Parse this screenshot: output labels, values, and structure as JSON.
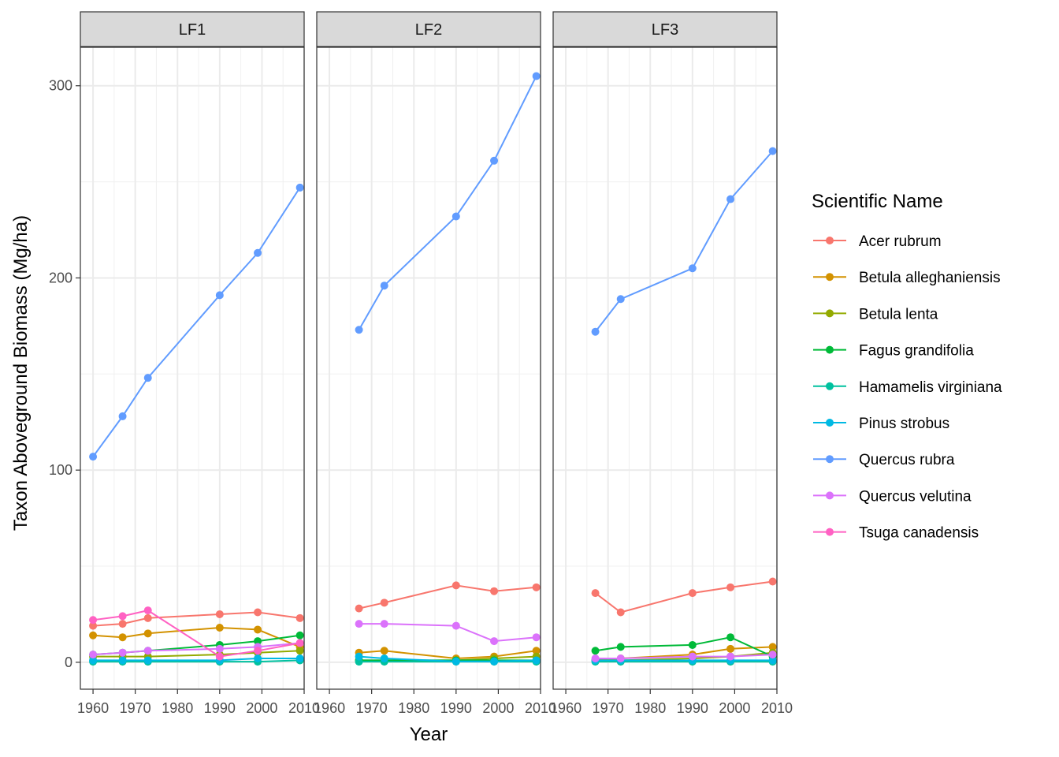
{
  "chart_data": {
    "type": "line",
    "facets": [
      "LF1",
      "LF2",
      "LF3"
    ],
    "xlabel": "Year",
    "ylabel": "Taxon Aboveground Biomass (Mg/ha)",
    "xlim": [
      1957,
      2010
    ],
    "ylim": [
      -14,
      320
    ],
    "x_ticks": [
      1960,
      1970,
      1980,
      1990,
      2000,
      2010
    ],
    "y_ticks": [
      0,
      100,
      200,
      300
    ],
    "grid": true,
    "legend": {
      "title": "Scientific Name",
      "placement": "right",
      "entries": [
        "Acer rubrum",
        "Betula alleghaniensis",
        "Betula lenta",
        "Fagus grandifolia",
        "Hamamelis virginiana",
        "Pinus strobus",
        "Quercus rubra",
        "Quercus velutina",
        "Tsuga canadensis"
      ]
    },
    "colors": {
      "Acer rubrum": "#F8766D",
      "Betula alleghaniensis": "#D39200",
      "Betula lenta": "#93AA00",
      "Fagus grandifolia": "#00BA38",
      "Hamamelis virginiana": "#00C19F",
      "Pinus strobus": "#00B9E3",
      "Quercus rubra": "#619CFF",
      "Quercus velutina": "#DB72FB",
      "Tsuga canadensis": "#FF61C3"
    },
    "series": [
      {
        "facet": "LF1",
        "name": "Acer rubrum",
        "x": [
          1960,
          1967,
          1973,
          1990,
          1999,
          2009
        ],
        "y": [
          19,
          20,
          23,
          25,
          26,
          23
        ]
      },
      {
        "facet": "LF1",
        "name": "Betula alleghaniensis",
        "x": [
          1960,
          1967,
          1973,
          1990,
          1999,
          2009
        ],
        "y": [
          14,
          13,
          15,
          18,
          17,
          8
        ]
      },
      {
        "facet": "LF1",
        "name": "Betula lenta",
        "x": [
          1960,
          1967,
          1973,
          1990,
          1999,
          2009
        ],
        "y": [
          3,
          3,
          3,
          4,
          5,
          6
        ]
      },
      {
        "facet": "LF1",
        "name": "Fagus grandifolia",
        "x": [
          1960,
          1967,
          1973,
          1990,
          1999,
          2009
        ],
        "y": [
          4,
          5,
          6,
          9,
          11,
          14
        ]
      },
      {
        "facet": "LF1",
        "name": "Hamamelis virginiana",
        "x": [
          1960,
          1967,
          1973,
          1990,
          1999,
          2009
        ],
        "y": [
          0.3,
          0.3,
          0.3,
          0.3,
          0.3,
          1
        ]
      },
      {
        "facet": "LF1",
        "name": "Pinus strobus",
        "x": [
          1960,
          1967,
          1973,
          1990,
          1999,
          2009
        ],
        "y": [
          1,
          1,
          1,
          1,
          2,
          2
        ]
      },
      {
        "facet": "LF1",
        "name": "Quercus rubra",
        "x": [
          1960,
          1967,
          1973,
          1990,
          1999,
          2009
        ],
        "y": [
          107,
          128,
          148,
          191,
          213,
          247
        ]
      },
      {
        "facet": "LF1",
        "name": "Quercus velutina",
        "x": [
          1960,
          1967,
          1973,
          1990,
          1999,
          2009
        ],
        "y": [
          4,
          5,
          6,
          7,
          8,
          10
        ]
      },
      {
        "facet": "LF1",
        "name": "Tsuga canadensis",
        "x": [
          1960,
          1967,
          1973,
          1990,
          1999,
          2009
        ],
        "y": [
          22,
          24,
          27,
          3,
          6,
          10
        ]
      },
      {
        "facet": "LF2",
        "name": "Acer rubrum",
        "x": [
          1967,
          1973,
          1990,
          1999,
          2009
        ],
        "y": [
          28,
          31,
          40,
          37,
          39
        ]
      },
      {
        "facet": "LF2",
        "name": "Betula alleghaniensis",
        "x": [
          1967,
          1973,
          1990,
          1999,
          2009
        ],
        "y": [
          5,
          6,
          2,
          3,
          6
        ]
      },
      {
        "facet": "LF2",
        "name": "Betula lenta",
        "x": [
          1967,
          1973,
          1990,
          1999,
          2009
        ],
        "y": [
          1,
          1,
          1,
          2,
          3
        ]
      },
      {
        "facet": "LF2",
        "name": "Fagus grandifolia",
        "x": [
          1967,
          1973,
          1990,
          1999,
          2009
        ],
        "y": [
          1,
          1,
          1,
          1,
          1
        ]
      },
      {
        "facet": "LF2",
        "name": "Hamamelis virginiana",
        "x": [
          1967,
          1973,
          1990,
          1999,
          2009
        ],
        "y": [
          0.3,
          0.3,
          0.3,
          0.3,
          0.3
        ]
      },
      {
        "facet": "LF2",
        "name": "Pinus strobus",
        "x": [
          1967,
          1973,
          1990,
          1999,
          2009
        ],
        "y": [
          3,
          2,
          0.5,
          0.5,
          1
        ]
      },
      {
        "facet": "LF2",
        "name": "Quercus rubra",
        "x": [
          1967,
          1973,
          1990,
          1999,
          2009
        ],
        "y": [
          173,
          196,
          232,
          261,
          305
        ]
      },
      {
        "facet": "LF2",
        "name": "Quercus velutina",
        "x": [
          1967,
          1973,
          1990,
          1999,
          2009
        ],
        "y": [
          20,
          20,
          19,
          11,
          13
        ]
      },
      {
        "facet": "LF3",
        "name": "Acer rubrum",
        "x": [
          1967,
          1973,
          1990,
          1999,
          2009
        ],
        "y": [
          36,
          26,
          36,
          39,
          42
        ]
      },
      {
        "facet": "LF3",
        "name": "Betula alleghaniensis",
        "x": [
          1967,
          1973,
          1990,
          1999,
          2009
        ],
        "y": [
          1,
          2,
          4,
          7,
          8
        ]
      },
      {
        "facet": "LF3",
        "name": "Betula lenta",
        "x": [
          1967,
          1973,
          1990,
          1999,
          2009
        ],
        "y": [
          1,
          1,
          2,
          3,
          5
        ]
      },
      {
        "facet": "LF3",
        "name": "Fagus grandifolia",
        "x": [
          1967,
          1973,
          1990,
          1999,
          2009
        ],
        "y": [
          6,
          8,
          9,
          13,
          3
        ]
      },
      {
        "facet": "LF3",
        "name": "Hamamelis virginiana",
        "x": [
          1967,
          1973,
          1990,
          1999,
          2009
        ],
        "y": [
          0.3,
          0.3,
          0.3,
          0.3,
          0.3
        ]
      },
      {
        "facet": "LF3",
        "name": "Pinus strobus",
        "x": [
          1967,
          1973,
          1990,
          1999,
          2009
        ],
        "y": [
          1,
          1,
          1,
          1,
          1
        ]
      },
      {
        "facet": "LF3",
        "name": "Quercus rubra",
        "x": [
          1967,
          1973,
          1990,
          1999,
          2009
        ],
        "y": [
          172,
          189,
          205,
          241,
          266
        ]
      },
      {
        "facet": "LF3",
        "name": "Quercus velutina",
        "x": [
          1967,
          1973,
          1990,
          1999,
          2009
        ],
        "y": [
          2,
          2,
          3,
          3,
          4
        ]
      }
    ]
  }
}
